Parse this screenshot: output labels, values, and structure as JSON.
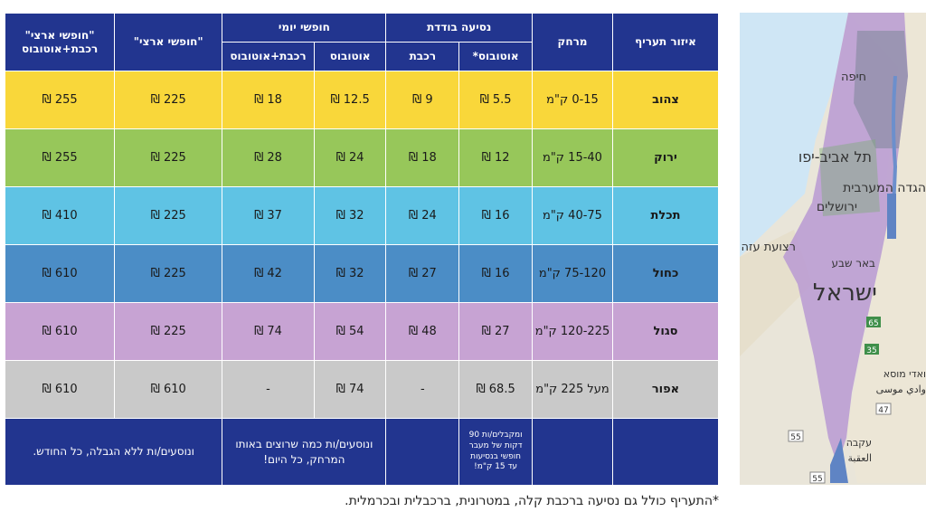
{
  "header": {
    "zone": "איזור תעריף",
    "distance": "מרחק",
    "single_trip": "נסיעה בודדת",
    "single_bus": "אוטובוס*",
    "single_train": "רכבת",
    "daily_free": "חופשי יומי",
    "daily_bus": "אוטובוס",
    "daily_train_bus": "רכבת+אוטובוס",
    "national_free": "\"חופשי ארצי\"",
    "national_free_train_bus": "\"חופשי ארצי\" רכבת+אוטובוס"
  },
  "rows": [
    {
      "zone": "צהוב",
      "distance": "0-15 ק\"מ",
      "single_bus": "5.5 ₪",
      "single_train": "9 ₪",
      "daily_bus": "12.5 ₪",
      "daily_train_bus": "18 ₪",
      "national": "225 ₪",
      "national_train_bus": "255 ₪",
      "color": "#f9d73a"
    },
    {
      "zone": "ירוק",
      "distance": "15-40 ק\"מ",
      "single_bus": "12 ₪",
      "single_train": "18 ₪",
      "daily_bus": "24 ₪",
      "daily_train_bus": "28 ₪",
      "national": "225 ₪",
      "national_train_bus": "255 ₪",
      "color": "#97c75a"
    },
    {
      "zone": "תכלת",
      "distance": "40-75 ק\"מ",
      "single_bus": "16 ₪",
      "single_train": "24 ₪",
      "daily_bus": "32 ₪",
      "daily_train_bus": "37 ₪",
      "national": "225 ₪",
      "national_train_bus": "410 ₪",
      "color": "#5fc3e4"
    },
    {
      "zone": "כחול",
      "distance": "75-120 ק\"מ",
      "single_bus": "16 ₪",
      "single_train": "27 ₪",
      "daily_bus": "32 ₪",
      "daily_train_bus": "42 ₪",
      "national": "225 ₪",
      "national_train_bus": "610 ₪",
      "color": "#4b8dc6"
    },
    {
      "zone": "סגול",
      "distance": "120-225 ק\"מ",
      "single_bus": "27 ₪",
      "single_train": "48 ₪",
      "daily_bus": "54 ₪",
      "daily_train_bus": "74 ₪",
      "national": "225 ₪",
      "national_train_bus": "610 ₪",
      "color": "#c7a3d3"
    },
    {
      "zone": "אפור",
      "distance": "מעל 225 ק\"מ",
      "single_bus": "68.5 ₪",
      "single_train": "-",
      "daily_bus": "74 ₪",
      "daily_train_bus": "-",
      "national": "610 ₪",
      "national_train_bus": "610 ₪",
      "color": "#c9c9c9"
    }
  ],
  "footer": {
    "single_bus_note": "ומקבלים/ות 90 דקות של מעבר חופשי בנסיעות עד 15 ק\"מ!",
    "daily_note": "ונוסעים/ות כמה שרוצים באותו המרחק, כל היום!",
    "national_note": "ונוסעים/ות ללא הגבלה, כל החודש."
  },
  "footnote": "*התעריף כולל גם נסיעה ברכבת קלה, במטרונית, ברכבלית ובכרמלית.",
  "map": {
    "labels": {
      "haifa": "חיפה",
      "tel_aviv": "תל אביב-יפו",
      "west_bank": "הגדה המערבית",
      "jerusalem": "ירושלים",
      "gaza": "רצועת עזה",
      "beersheba": "באר שבע",
      "israel": "ישראל",
      "wadi_musa": "ואדי מוסא",
      "wadi_musa_ar": "وادي موسى",
      "eilat": "עקבה",
      "eilat_ar": "العقبة"
    },
    "road_numbers": [
      "65",
      "35",
      "47",
      "55",
      "55"
    ]
  }
}
